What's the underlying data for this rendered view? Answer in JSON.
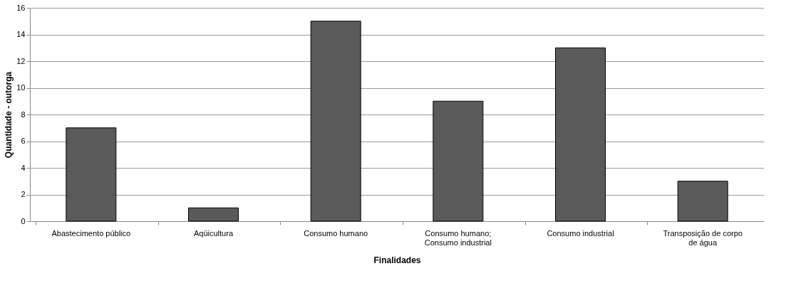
{
  "chart_data": {
    "type": "bar",
    "xlabel": "Finalidades",
    "ylabel": "Quantidade - outorga",
    "categories": [
      "Abastecimento público",
      "Aqüicultura",
      "Consumo humano",
      "Consumo humano; Consumo industrial",
      "Consumo industrial",
      "Transposição de corpo de água"
    ],
    "values": [
      7,
      1,
      15,
      9,
      13,
      3
    ],
    "color": "#5a5a5a",
    "ylim": [
      0,
      16
    ],
    "yticks": [
      0,
      2,
      4,
      6,
      8,
      10,
      12,
      14,
      16
    ],
    "grid": "y"
  }
}
